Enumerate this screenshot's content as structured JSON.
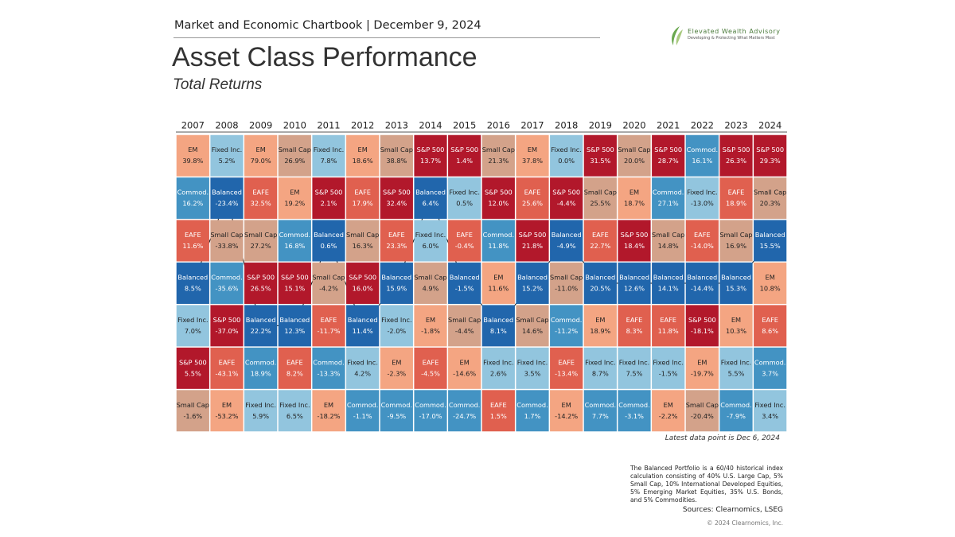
{
  "chart_data": {
    "type": "quilt",
    "header": "Market and Economic Chartbook | December 9, 2024",
    "title": "Asset Class Performance",
    "subtitle": "Total Returns",
    "footnote": "Latest data point is Dec 6, 2024",
    "note": "The Balanced Portfolio is a 60/40 historical index calculation consisting of 40% U.S. Large Cap, 5% Small Cap, 10% International Developed Equities, 5% Emerging Market Equities, 35% U.S. Bonds, and 5% Commodities.",
    "sources": "Sources: Clearnomics, LSEG",
    "copyright": "© 2024 Clearnomics, Inc.",
    "logo": {
      "name": "Elevated Wealth Advisory",
      "tagline": "Developing & Protecting What Matters Most"
    },
    "highlight": "Balanced",
    "colors": {
      "EM": "#f4a582",
      "Fixed Inc.": "#92c5de",
      "Small Cap": "#d3a28a",
      "S&P 500": "#b2182b",
      "Commod.": "#4393c3",
      "Balanced": "#2166ac",
      "EAFE": "#e0604f"
    },
    "columns": [
      {
        "year": "2007",
        "names": [
          "EM",
          "Commod.",
          "EAFE",
          "Balanced",
          "Fixed Inc.",
          "S&P 500",
          "Small Cap"
        ],
        "values": [
          39.8,
          16.2,
          11.6,
          8.5,
          7.0,
          5.5,
          -1.6
        ],
        "value_labels": [
          "39.8%",
          "16.2%",
          "11.6%",
          "8.5%",
          "7.0%",
          "5.5%",
          "-1.6%"
        ]
      },
      {
        "year": "2008",
        "names": [
          "Fixed Inc.",
          "Balanced",
          "Small Cap",
          "Commod.",
          "S&P 500",
          "EAFE",
          "EM"
        ],
        "values": [
          5.2,
          -23.4,
          -33.8,
          -35.6,
          -37.0,
          -43.1,
          -53.2
        ],
        "value_labels": [
          "5.2%",
          "-23.4%",
          "-33.8%",
          "-35.6%",
          "-37.0%",
          "-43.1%",
          "-53.2%"
        ]
      },
      {
        "year": "2009",
        "names": [
          "EM",
          "EAFE",
          "Small Cap",
          "S&P 500",
          "Balanced",
          "Commod.",
          "Fixed Inc."
        ],
        "values": [
          79.0,
          32.5,
          27.2,
          26.5,
          22.2,
          18.9,
          5.9
        ],
        "value_labels": [
          "79.0%",
          "32.5%",
          "27.2%",
          "26.5%",
          "22.2%",
          "18.9%",
          "5.9%"
        ]
      },
      {
        "year": "2010",
        "names": [
          "Small Cap",
          "EM",
          "Commod.",
          "S&P 500",
          "Balanced",
          "EAFE",
          "Fixed Inc."
        ],
        "values": [
          26.9,
          19.2,
          16.8,
          15.1,
          12.3,
          8.2,
          6.5
        ],
        "value_labels": [
          "26.9%",
          "19.2%",
          "16.8%",
          "15.1%",
          "12.3%",
          "8.2%",
          "6.5%"
        ]
      },
      {
        "year": "2011",
        "names": [
          "Fixed Inc.",
          "S&P 500",
          "Balanced",
          "Small Cap",
          "EAFE",
          "Commod.",
          "EM"
        ],
        "values": [
          7.8,
          2.1,
          0.6,
          -4.2,
          -11.7,
          -13.3,
          -18.2
        ],
        "value_labels": [
          "7.8%",
          "2.1%",
          "0.6%",
          "-4.2%",
          "-11.7%",
          "-13.3%",
          "-18.2%"
        ]
      },
      {
        "year": "2012",
        "names": [
          "EM",
          "EAFE",
          "Small Cap",
          "S&P 500",
          "Balanced",
          "Fixed Inc.",
          "Commod."
        ],
        "values": [
          18.6,
          17.9,
          16.3,
          16.0,
          11.4,
          4.2,
          -1.1
        ],
        "value_labels": [
          "18.6%",
          "17.9%",
          "16.3%",
          "16.0%",
          "11.4%",
          "4.2%",
          "-1.1%"
        ]
      },
      {
        "year": "2013",
        "names": [
          "Small Cap",
          "S&P 500",
          "EAFE",
          "Balanced",
          "Fixed Inc.",
          "EM",
          "Commod."
        ],
        "values": [
          38.8,
          32.4,
          23.3,
          15.9,
          -2.0,
          -2.3,
          -9.5
        ],
        "value_labels": [
          "38.8%",
          "32.4%",
          "23.3%",
          "15.9%",
          "-2.0%",
          "-2.3%",
          "-9.5%"
        ]
      },
      {
        "year": "2014",
        "names": [
          "S&P 500",
          "Balanced",
          "Fixed Inc.",
          "Small Cap",
          "EM",
          "EAFE",
          "Commod."
        ],
        "values": [
          13.7,
          6.4,
          6.0,
          4.9,
          -1.8,
          -4.5,
          -17.0
        ],
        "value_labels": [
          "13.7%",
          "6.4%",
          "6.0%",
          "4.9%",
          "-1.8%",
          "-4.5%",
          "-17.0%"
        ]
      },
      {
        "year": "2015",
        "names": [
          "S&P 500",
          "Fixed Inc.",
          "EAFE",
          "Balanced",
          "Small Cap",
          "EM",
          "Commod."
        ],
        "values": [
          1.4,
          0.5,
          -0.4,
          -1.5,
          -4.4,
          -14.6,
          -24.7
        ],
        "value_labels": [
          "1.4%",
          "0.5%",
          "-0.4%",
          "-1.5%",
          "-4.4%",
          "-14.6%",
          "-24.7%"
        ]
      },
      {
        "year": "2016",
        "names": [
          "Small Cap",
          "S&P 500",
          "Commod.",
          "EM",
          "Balanced",
          "Fixed Inc.",
          "EAFE"
        ],
        "values": [
          21.3,
          12.0,
          11.8,
          11.6,
          8.1,
          2.6,
          1.5
        ],
        "value_labels": [
          "21.3%",
          "12.0%",
          "11.8%",
          "11.6%",
          "8.1%",
          "2.6%",
          "1.5%"
        ]
      },
      {
        "year": "2017",
        "names": [
          "EM",
          "EAFE",
          "S&P 500",
          "Balanced",
          "Small Cap",
          "Fixed Inc.",
          "Commod."
        ],
        "values": [
          37.8,
          25.6,
          21.8,
          15.2,
          14.6,
          3.5,
          1.7
        ],
        "value_labels": [
          "37.8%",
          "25.6%",
          "21.8%",
          "15.2%",
          "14.6%",
          "3.5%",
          "1.7%"
        ]
      },
      {
        "year": "2018",
        "names": [
          "Fixed Inc.",
          "S&P 500",
          "Balanced",
          "Small Cap",
          "Commod.",
          "EAFE",
          "EM"
        ],
        "values": [
          0.0,
          -4.4,
          -4.9,
          -11.0,
          -11.2,
          -13.4,
          -14.2
        ],
        "value_labels": [
          "0.0%",
          "-4.4%",
          "-4.9%",
          "-11.0%",
          "-11.2%",
          "-13.4%",
          "-14.2%"
        ]
      },
      {
        "year": "2019",
        "names": [
          "S&P 500",
          "Small Cap",
          "EAFE",
          "Balanced",
          "EM",
          "Fixed Inc.",
          "Commod."
        ],
        "values": [
          31.5,
          25.5,
          22.7,
          20.5,
          18.9,
          8.7,
          7.7
        ],
        "value_labels": [
          "31.5%",
          "25.5%",
          "22.7%",
          "20.5%",
          "18.9%",
          "8.7%",
          "7.7%"
        ]
      },
      {
        "year": "2020",
        "names": [
          "Small Cap",
          "EM",
          "S&P 500",
          "Balanced",
          "EAFE",
          "Fixed Inc.",
          "Commod."
        ],
        "values": [
          20.0,
          18.7,
          18.4,
          12.6,
          8.3,
          7.5,
          -3.1
        ],
        "value_labels": [
          "20.0%",
          "18.7%",
          "18.4%",
          "12.6%",
          "8.3%",
          "7.5%",
          "-3.1%"
        ]
      },
      {
        "year": "2021",
        "names": [
          "S&P 500",
          "Commod.",
          "Small Cap",
          "Balanced",
          "EAFE",
          "Fixed Inc.",
          "EM"
        ],
        "values": [
          28.7,
          27.1,
          14.8,
          14.1,
          11.8,
          -1.5,
          -2.2
        ],
        "value_labels": [
          "28.7%",
          "27.1%",
          "14.8%",
          "14.1%",
          "11.8%",
          "-1.5%",
          "-2.2%"
        ]
      },
      {
        "year": "2022",
        "names": [
          "Commod.",
          "Fixed Inc.",
          "EAFE",
          "Balanced",
          "S&P 500",
          "EM",
          "Small Cap"
        ],
        "values": [
          16.1,
          -13.0,
          -14.0,
          -14.4,
          -18.1,
          -19.7,
          -20.4
        ],
        "value_labels": [
          "16.1%",
          "-13.0%",
          "-14.0%",
          "-14.4%",
          "-18.1%",
          "-19.7%",
          "-20.4%"
        ]
      },
      {
        "year": "2023",
        "names": [
          "S&P 500",
          "EAFE",
          "Small Cap",
          "Balanced",
          "EM",
          "Fixed Inc.",
          "Commod."
        ],
        "values": [
          26.3,
          18.9,
          16.9,
          15.3,
          10.3,
          5.5,
          -7.9
        ],
        "value_labels": [
          "26.3%",
          "18.9%",
          "16.9%",
          "15.3%",
          "10.3%",
          "5.5%",
          "-7.9%"
        ]
      },
      {
        "year": "2024",
        "names": [
          "S&P 500",
          "Small Cap",
          "Balanced",
          "EM",
          "EAFE",
          "Commod.",
          "Fixed Inc."
        ],
        "values": [
          29.3,
          20.3,
          15.5,
          10.8,
          8.6,
          3.7,
          3.4
        ],
        "value_labels": [
          "29.3%",
          "20.3%",
          "15.5%",
          "10.8%",
          "8.6%",
          "3.7%",
          "3.4%"
        ]
      }
    ]
  }
}
